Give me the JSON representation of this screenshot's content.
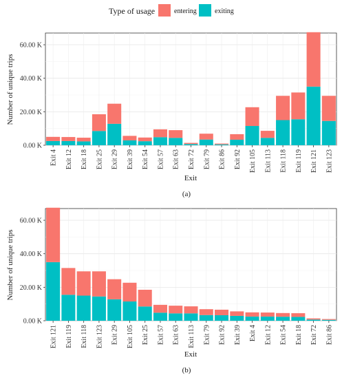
{
  "legend": {
    "title": "Type of usage",
    "entries": [
      {
        "label": "entering",
        "color": "#F8766D"
      },
      {
        "label": "exiting",
        "color": "#00BFC4"
      }
    ]
  },
  "colors": {
    "entering": "#F8766D",
    "exiting": "#00BFC4",
    "panel": "#FFFFFF",
    "grid": "#EBEBEB",
    "border": "#333333"
  },
  "chart_data": [
    {
      "type": "bar",
      "stacked": true,
      "caption": "(a)",
      "xlabel": "Exit",
      "ylabel": "Number of unique trips",
      "ylim": [
        0,
        67000
      ],
      "y_ticks": [
        0,
        20000,
        40000,
        60000
      ],
      "y_tick_labels": [
        "0.00 K",
        "20.00 K",
        "40.00 K",
        "60.00 K"
      ],
      "grid": true,
      "categories": [
        "Exit 4",
        "Exit 12",
        "Exit 18",
        "Exit 25",
        "Exit 29",
        "Exit 39",
        "Exit 54",
        "Exit 57",
        "Exit 63",
        "Exit 72",
        "Exit 79",
        "Exit 86",
        "Exit 92",
        "Exit 105",
        "Exit 113",
        "Exit 118",
        "Exit 119",
        "Exit 121",
        "Exit 123"
      ],
      "series": [
        {
          "name": "exiting",
          "values": [
            2500,
            2500,
            2300,
            8500,
            12800,
            2900,
            2400,
            4800,
            4400,
            700,
            3400,
            500,
            3300,
            11500,
            4400,
            15000,
            15500,
            35000,
            14500
          ]
        },
        {
          "name": "entering",
          "values": [
            2500,
            2400,
            2200,
            10000,
            12000,
            2700,
            2200,
            4700,
            4600,
            700,
            3500,
            500,
            3300,
            11200,
            4200,
            14500,
            16000,
            32500,
            15000
          ]
        }
      ]
    },
    {
      "type": "bar",
      "stacked": true,
      "caption": "(b)",
      "xlabel": "Exit",
      "ylabel": "Number of unique trips",
      "ylim": [
        0,
        67000
      ],
      "y_ticks": [
        0,
        20000,
        40000,
        60000
      ],
      "y_tick_labels": [
        "0.00 K",
        "20.00 K",
        "40.00 K",
        "60.00 K"
      ],
      "grid": true,
      "categories": [
        "Exit 121",
        "Exit 119",
        "Exit 118",
        "Exit 123",
        "Exit 29",
        "Exit 105",
        "Exit 25",
        "Exit 57",
        "Exit 63",
        "Exit 113",
        "Exit 79",
        "Exit 92",
        "Exit 39",
        "Exit 4",
        "Exit 12",
        "Exit 54",
        "Exit 18",
        "Exit 72",
        "Exit 86"
      ],
      "series": [
        {
          "name": "exiting",
          "values": [
            35000,
            15500,
            15000,
            14500,
            12800,
            11500,
            8500,
            4800,
            4400,
            4400,
            3400,
            3300,
            2900,
            2500,
            2500,
            2400,
            2300,
            700,
            500
          ]
        },
        {
          "name": "entering",
          "values": [
            32500,
            16000,
            14500,
            15000,
            12000,
            11200,
            10000,
            4700,
            4600,
            4200,
            3500,
            3300,
            2700,
            2500,
            2400,
            2200,
            2200,
            700,
            500
          ]
        }
      ]
    }
  ]
}
